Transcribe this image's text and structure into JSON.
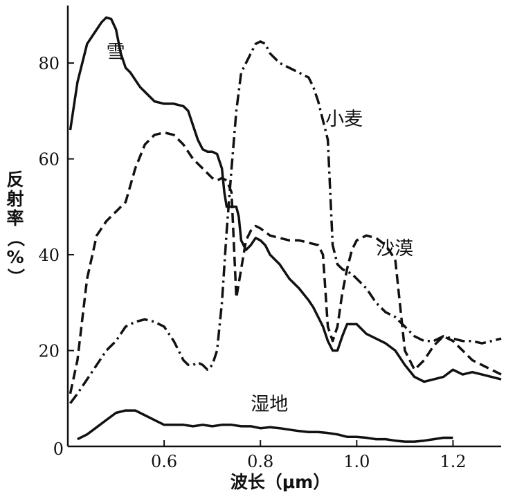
{
  "chart_data": {
    "type": "line",
    "title": "",
    "xlabel": "波长（μm）",
    "ylabel": "反射率（%）",
    "xlim": [
      0.4,
      1.3
    ],
    "ylim": [
      0,
      92
    ],
    "x_ticks": [
      0.6,
      0.8,
      1.0,
      1.2
    ],
    "x_tick_labels": [
      "0.6",
      "0.8",
      "1.0",
      "1.2"
    ],
    "y_ticks": [
      0,
      20,
      40,
      60,
      80
    ],
    "y_tick_labels": [
      "0",
      "20",
      "40",
      "60",
      "80"
    ],
    "origin_label": "0",
    "grid": false,
    "legend": "inline labels",
    "series": [
      {
        "name": "雪",
        "style": "solid",
        "label_pos": [
          0.48,
          81
        ],
        "x": [
          0.405,
          0.42,
          0.44,
          0.46,
          0.47,
          0.48,
          0.49,
          0.5,
          0.51,
          0.52,
          0.53,
          0.55,
          0.58,
          0.6,
          0.62,
          0.64,
          0.65,
          0.66,
          0.67,
          0.68,
          0.69,
          0.7,
          0.71,
          0.72,
          0.725,
          0.73,
          0.735,
          0.74,
          0.75,
          0.755,
          0.76,
          0.77,
          0.78,
          0.79,
          0.8,
          0.81,
          0.82,
          0.84,
          0.86,
          0.88,
          0.9,
          0.91,
          0.92,
          0.93,
          0.94,
          0.95,
          0.96,
          0.97,
          0.98,
          0.99,
          1.0,
          1.02,
          1.04,
          1.06,
          1.08,
          1.1,
          1.12,
          1.14,
          1.16,
          1.18,
          1.2,
          1.22,
          1.24,
          1.26,
          1.28,
          1.3
        ],
        "y": [
          66,
          76,
          84,
          87,
          88.5,
          89.5,
          89.2,
          87,
          82,
          79,
          78,
          75,
          72,
          71.5,
          71.5,
          71,
          70,
          67,
          64,
          62,
          61.5,
          61.5,
          61,
          58,
          53,
          50,
          50,
          50,
          50,
          48,
          43,
          41,
          42,
          43.5,
          43,
          42,
          40,
          38,
          35,
          33,
          30.5,
          29,
          27,
          25,
          22,
          20,
          20,
          23,
          25.5,
          25.5,
          25.5,
          23.5,
          22.5,
          21.5,
          20,
          17,
          14.5,
          13.5,
          14,
          14.5,
          16,
          15,
          15.5,
          15,
          14.5,
          14
        ]
      },
      {
        "name": "小麦",
        "style": "dashdot",
        "label_pos": [
          0.935,
          67
        ],
        "x": [
          0.405,
          0.42,
          0.44,
          0.46,
          0.48,
          0.5,
          0.52,
          0.54,
          0.56,
          0.58,
          0.6,
          0.62,
          0.63,
          0.64,
          0.65,
          0.66,
          0.67,
          0.68,
          0.69,
          0.7,
          0.71,
          0.72,
          0.73,
          0.74,
          0.75,
          0.76,
          0.77,
          0.78,
          0.79,
          0.8,
          0.81,
          0.82,
          0.84,
          0.86,
          0.88,
          0.9,
          0.91,
          0.92,
          0.93,
          0.94,
          0.95,
          0.96,
          0.97,
          0.98,
          0.99,
          1.0,
          1.02,
          1.04,
          1.06,
          1.08,
          1.1,
          1.12,
          1.14,
          1.16,
          1.18,
          1.2,
          1.22,
          1.24,
          1.26,
          1.28,
          1.3
        ],
        "y": [
          9,
          11,
          14,
          17,
          20,
          22,
          25,
          26,
          26.5,
          26,
          25,
          22,
          20,
          18,
          17,
          17,
          17.5,
          17,
          16,
          17,
          20,
          30,
          45,
          58,
          70,
          78,
          80,
          82,
          84,
          84.5,
          84,
          82,
          80,
          79,
          78,
          77,
          75,
          72,
          68,
          64,
          42,
          38,
          37,
          36.5,
          36,
          35,
          33,
          30,
          28,
          27,
          25,
          23,
          22,
          22,
          23,
          22.5,
          22,
          22,
          21.5,
          22,
          22.5
        ]
      },
      {
        "name": "沙漠",
        "style": "dashed",
        "label_pos": [
          1.04,
          40
        ],
        "x": [
          0.405,
          0.42,
          0.44,
          0.46,
          0.48,
          0.5,
          0.52,
          0.54,
          0.56,
          0.58,
          0.6,
          0.62,
          0.64,
          0.66,
          0.68,
          0.7,
          0.71,
          0.72,
          0.73,
          0.74,
          0.75,
          0.76,
          0.77,
          0.78,
          0.79,
          0.8,
          0.82,
          0.84,
          0.86,
          0.88,
          0.9,
          0.92,
          0.93,
          0.94,
          0.95,
          0.96,
          0.97,
          0.98,
          0.99,
          1.0,
          1.02,
          1.04,
          1.06,
          1.08,
          1.1,
          1.12,
          1.14,
          1.16,
          1.18,
          1.2,
          1.22,
          1.24,
          1.26,
          1.28,
          1.3
        ],
        "y": [
          11,
          18,
          35,
          44,
          47,
          49,
          51,
          58,
          63,
          65,
          65.5,
          65,
          63,
          60,
          58,
          56,
          55.5,
          56,
          55.5,
          53,
          31,
          37,
          43,
          45,
          46,
          45.5,
          44,
          43.5,
          43,
          43,
          42.5,
          42,
          40,
          25,
          22,
          25,
          32,
          37,
          41,
          43,
          44,
          43.5,
          42,
          39,
          20,
          16,
          18,
          21,
          23,
          22,
          20,
          18,
          17,
          16,
          15
        ]
      },
      {
        "name": "湿地",
        "style": "solid",
        "label_pos": [
          0.78,
          7.5
        ],
        "x": [
          0.42,
          0.44,
          0.46,
          0.48,
          0.5,
          0.52,
          0.54,
          0.56,
          0.58,
          0.6,
          0.62,
          0.64,
          0.66,
          0.68,
          0.7,
          0.72,
          0.74,
          0.76,
          0.78,
          0.8,
          0.82,
          0.84,
          0.86,
          0.88,
          0.9,
          0.92,
          0.94,
          0.96,
          0.98,
          1.0,
          1.02,
          1.04,
          1.06,
          1.08,
          1.1,
          1.12,
          1.14,
          1.16,
          1.18,
          1.2
        ],
        "y": [
          1.5,
          2.5,
          4,
          5.5,
          7,
          7.5,
          7.5,
          6.5,
          5.5,
          4.5,
          4.5,
          4.5,
          4.2,
          4.5,
          4.2,
          4.5,
          4.5,
          4.2,
          4.2,
          3.8,
          4,
          3.8,
          3.5,
          3.2,
          3,
          3,
          2.8,
          2.5,
          2,
          2,
          1.8,
          1.5,
          1.5,
          1.2,
          1,
          1,
          1.2,
          1.5,
          1.8,
          1.8
        ]
      }
    ]
  }
}
